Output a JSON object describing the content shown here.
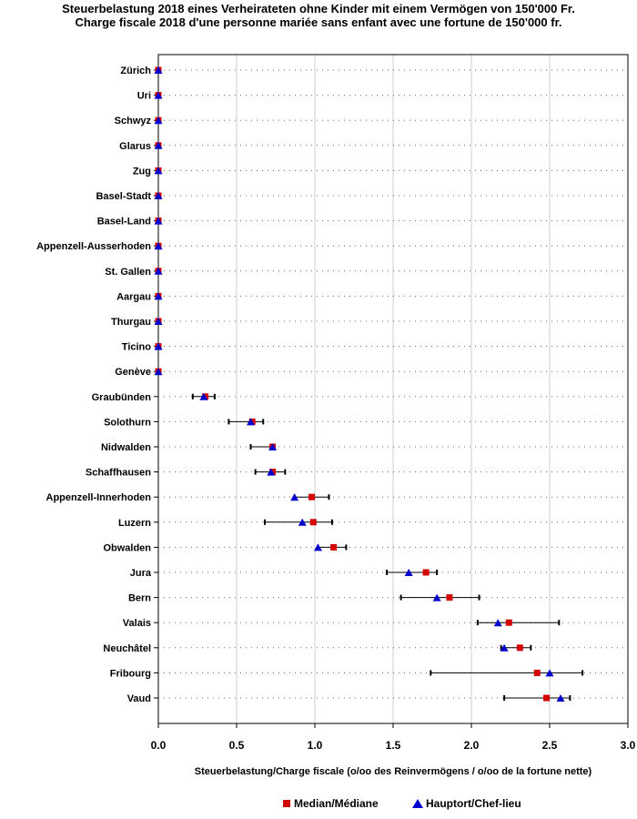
{
  "chart_data": {
    "type": "dot-range",
    "title": "Steuerbelastung 2018 eines Verheirateten ohne Kinder mit einem Vermögen von 150'000 Fr.",
    "subtitle": "Charge fiscale 2018 d'une personne mariée sans enfant avec une fortune de 150'000 fr.",
    "xlabel": "Steuerbelastung/Charge fiscale (o/oo des Reinvermögens / o/oo de la fortune nette)",
    "xlim": [
      0,
      3.0
    ],
    "xticks": [
      "0.0",
      "0.5",
      "1.0",
      "1.5",
      "2.0",
      "2.5",
      "3.0"
    ],
    "grid": true,
    "series": [
      {
        "name": "Median/Médiane",
        "marker": "square",
        "color": "#d40000"
      },
      {
        "name": "Hauptort/Chef-lieu",
        "marker": "triangle",
        "color": "#0000cc"
      }
    ],
    "rows": [
      {
        "label": "Zürich",
        "min": 0,
        "max": 0,
        "median": 0,
        "capital": 0
      },
      {
        "label": "Uri",
        "min": 0,
        "max": 0,
        "median": 0,
        "capital": 0
      },
      {
        "label": "Schwyz",
        "min": 0,
        "max": 0,
        "median": 0,
        "capital": 0
      },
      {
        "label": "Glarus",
        "min": 0,
        "max": 0,
        "median": 0,
        "capital": 0
      },
      {
        "label": "Zug",
        "min": 0,
        "max": 0,
        "median": 0,
        "capital": 0
      },
      {
        "label": "Basel-Stadt",
        "min": 0,
        "max": 0,
        "median": 0,
        "capital": 0
      },
      {
        "label": "Basel-Land",
        "min": 0,
        "max": 0,
        "median": 0,
        "capital": 0
      },
      {
        "label": "Appenzell-Ausserhoden",
        "min": 0,
        "max": 0,
        "median": 0,
        "capital": 0
      },
      {
        "label": "St. Gallen",
        "min": 0,
        "max": 0,
        "median": 0,
        "capital": 0
      },
      {
        "label": "Aargau",
        "min": 0,
        "max": 0,
        "median": 0,
        "capital": 0
      },
      {
        "label": "Thurgau",
        "min": 0,
        "max": 0,
        "median": 0,
        "capital": 0
      },
      {
        "label": "Ticino",
        "min": 0,
        "max": 0,
        "median": 0,
        "capital": 0
      },
      {
        "label": "Genève",
        "min": 0,
        "max": 0,
        "median": 0,
        "capital": 0
      },
      {
        "label": "Graubünden",
        "min": 0.22,
        "max": 0.36,
        "median": 0.3,
        "capital": 0.29
      },
      {
        "label": "Solothurn",
        "min": 0.45,
        "max": 0.67,
        "median": 0.6,
        "capital": 0.59
      },
      {
        "label": "Nidwalden",
        "min": 0.59,
        "max": 0.74,
        "median": 0.73,
        "capital": 0.73
      },
      {
        "label": "Schaffhausen",
        "min": 0.62,
        "max": 0.81,
        "median": 0.73,
        "capital": 0.72
      },
      {
        "label": "Appenzell-Innerhoden",
        "min": 0.87,
        "max": 1.09,
        "median": 0.98,
        "capital": 0.87
      },
      {
        "label": "Luzern",
        "min": 0.68,
        "max": 1.11,
        "median": 0.99,
        "capital": 0.92
      },
      {
        "label": "Obwalden",
        "min": 1.02,
        "max": 1.2,
        "median": 1.12,
        "capital": 1.02
      },
      {
        "label": "Jura",
        "min": 1.46,
        "max": 1.78,
        "median": 1.71,
        "capital": 1.6
      },
      {
        "label": "Bern",
        "min": 1.55,
        "max": 2.05,
        "median": 1.86,
        "capital": 1.78
      },
      {
        "label": "Valais",
        "min": 2.04,
        "max": 2.56,
        "median": 2.24,
        "capital": 2.17
      },
      {
        "label": "Neuchâtel",
        "min": 2.19,
        "max": 2.38,
        "median": 2.31,
        "capital": 2.21
      },
      {
        "label": "Fribourg",
        "min": 1.74,
        "max": 2.71,
        "median": 2.42,
        "capital": 2.5
      },
      {
        "label": "Vaud",
        "min": 2.21,
        "max": 2.63,
        "median": 2.48,
        "capital": 2.57
      }
    ]
  }
}
